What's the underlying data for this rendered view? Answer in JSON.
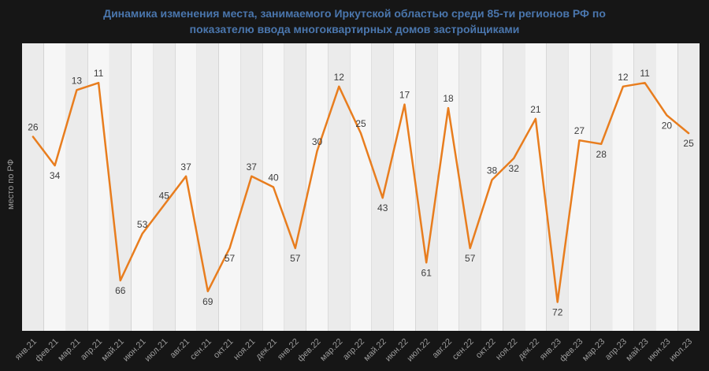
{
  "page": {
    "background_color": "#161616"
  },
  "chart_data": {
    "type": "line",
    "title": "Динамика изменения места, занимаемого Иркутской областью среди 85-ти регионов РФ по показателю ввода многоквартирных домов застройщиками",
    "ylabel": "место по РФ",
    "xlabel": "",
    "categories": [
      "янв.21",
      "фев.21",
      "мар.21",
      "апр.21",
      "май.21",
      "июн.21",
      "июл.21",
      "авг.21",
      "сен.21",
      "окт.21",
      "ноя.21",
      "дек.21",
      "янв.22",
      "фев.22",
      "мар.22",
      "апр.22",
      "май.22",
      "июн.22",
      "июл.22",
      "авг.22",
      "сен.22",
      "окт.22",
      "ноя.22",
      "дек.22",
      "янв.23",
      "фев.23",
      "мар.23",
      "апр.23",
      "май.23",
      "июн.23",
      "июл.23"
    ],
    "values": [
      26,
      34,
      13,
      11,
      66,
      53,
      45,
      37,
      69,
      57,
      37,
      40,
      57,
      30,
      12,
      25,
      43,
      17,
      61,
      18,
      57,
      38,
      32,
      21,
      72,
      27,
      28,
      12,
      11,
      20,
      25
    ],
    "label_sides": [
      "above",
      "below",
      "above",
      "above",
      "below",
      "above",
      "above",
      "above",
      "below",
      "below",
      "above",
      "above",
      "below",
      "above",
      "above",
      "above",
      "below",
      "above",
      "below",
      "above",
      "below",
      "above",
      "below",
      "above",
      "below",
      "above",
      "below",
      "above",
      "above",
      "below",
      "below"
    ],
    "y_domain": [
      0,
      80
    ],
    "y_inverted": true,
    "legend": "none",
    "grid": "vertical-stripes",
    "colors": {
      "line": "#e87d1e",
      "point_label": "#3d3d3d",
      "axis_text": "#9b9b9b",
      "title": "#4a76ad",
      "stripe_even": "#ebebeb",
      "stripe_odd": "#f6f6f6",
      "background": "#161616"
    }
  }
}
